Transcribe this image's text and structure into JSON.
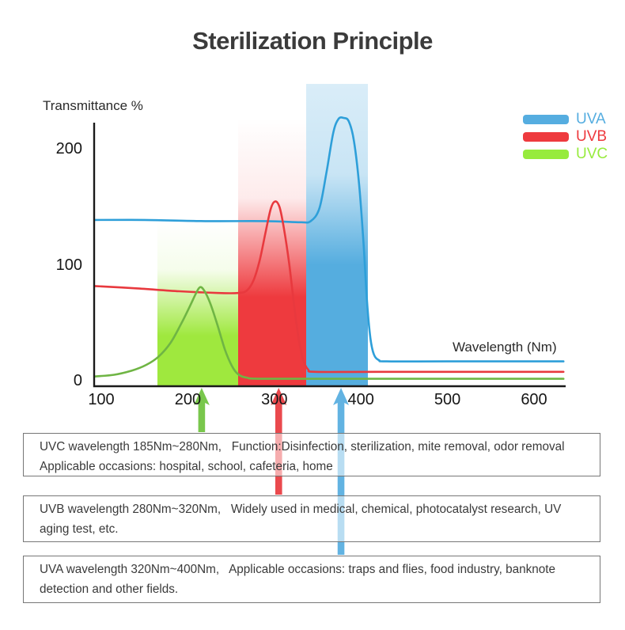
{
  "title": "Sterilization Principle",
  "chart_data": {
    "type": "line",
    "title": "Sterilization Principle",
    "xlabel": "Wavelength (Nm)",
    "ylabel": "Transmittance %",
    "x_ticks": [
      100,
      200,
      300,
      400,
      500,
      600
    ],
    "y_ticks": [
      0,
      100,
      200
    ],
    "xlim": [
      90,
      640
    ],
    "ylim": [
      0,
      235
    ],
    "grid": false,
    "legend_position": "top-right",
    "series": [
      {
        "name": "UVA",
        "color": "#2E9FD9",
        "points": [
          [
            92,
            140
          ],
          [
            150,
            140
          ],
          [
            220,
            139
          ],
          [
            290,
            139
          ],
          [
            330,
            138
          ],
          [
            342,
            139
          ],
          [
            352,
            150
          ],
          [
            360,
            180
          ],
          [
            368,
            215
          ],
          [
            374,
            227
          ],
          [
            380,
            228
          ],
          [
            386,
            225
          ],
          [
            392,
            208
          ],
          [
            398,
            170
          ],
          [
            403,
            120
          ],
          [
            407,
            70
          ],
          [
            411,
            38
          ],
          [
            415,
            24
          ],
          [
            421,
            19
          ],
          [
            430,
            18
          ],
          [
            500,
            18
          ],
          [
            634,
            18
          ]
        ]
      },
      {
        "name": "UVB",
        "color": "#E8393E",
        "points": [
          [
            92,
            83
          ],
          [
            140,
            81
          ],
          [
            190,
            78.5
          ],
          [
            235,
            77
          ],
          [
            258,
            77
          ],
          [
            268,
            79
          ],
          [
            276,
            88
          ],
          [
            283,
            105
          ],
          [
            290,
            130
          ],
          [
            296,
            150
          ],
          [
            301,
            156
          ],
          [
            306,
            151
          ],
          [
            311,
            133
          ],
          [
            317,
            103
          ],
          [
            323,
            65
          ],
          [
            328,
            38
          ],
          [
            333,
            20
          ],
          [
            339,
            11
          ],
          [
            348,
            9
          ],
          [
            420,
            9
          ],
          [
            634,
            9
          ]
        ]
      },
      {
        "name": "UVC",
        "color": "#6FB544",
        "points": [
          [
            92,
            5
          ],
          [
            115,
            6.5
          ],
          [
            135,
            10
          ],
          [
            152,
            15
          ],
          [
            166,
            22
          ],
          [
            180,
            34
          ],
          [
            192,
            50
          ],
          [
            202,
            65
          ],
          [
            209,
            76
          ],
          [
            214,
            82
          ],
          [
            219,
            79
          ],
          [
            226,
            68
          ],
          [
            234,
            50
          ],
          [
            243,
            28
          ],
          [
            251,
            14
          ],
          [
            258,
            7
          ],
          [
            268,
            4
          ],
          [
            290,
            3
          ],
          [
            420,
            3
          ],
          [
            634,
            3
          ]
        ]
      }
    ],
    "bands": [
      {
        "label": "UVC",
        "nm_range": [
          165,
          258
        ],
        "top_value": 139,
        "color": "#9FE83E",
        "fade_from_opacity": 0,
        "solid_at_percent": 70
      },
      {
        "label": "UVB",
        "nm_range": [
          258,
          337
        ],
        "top_value": 228,
        "color": "#EE3A3E",
        "fade_from_opacity": 0,
        "solid_at_percent": 67
      },
      {
        "label": "UVA",
        "nm_range": [
          337,
          408
        ],
        "top_value": 257,
        "color": "#55ADDF",
        "fade_from_opacity": 0.22,
        "solid_at_percent": 60
      }
    ],
    "arrows": [
      {
        "label": "UVC",
        "nm": 216,
        "color": "#6EC23D",
        "points_to_box": 0
      },
      {
        "label": "UVB",
        "nm": 305,
        "color": "#E8393E",
        "points_to_box": 1
      },
      {
        "label": "UVA",
        "nm": 377,
        "color": "#55ADE0",
        "points_to_box": 2
      }
    ]
  },
  "legend": {
    "items": [
      {
        "label": "UVA",
        "color": "#55ADE0"
      },
      {
        "label": "UVB",
        "color": "#EE3A3E"
      },
      {
        "label": "UVC",
        "color": "#97EB3D"
      }
    ]
  },
  "boxes": [
    {
      "id": "uvc",
      "line1": "UVC wavelength 185Nm~280Nm,   Function:Disinfection, sterilization, mite removal, odor removal",
      "line2": "Applicable occasions: hospital, school, cafeteria, home"
    },
    {
      "id": "uvb",
      "line1": "UVB wavelength 280Nm~320Nm,   Widely used in medical, chemical, photocatalyst research, UV",
      "line2": "aging test, etc."
    },
    {
      "id": "uva",
      "line1": "UVA wavelength 320Nm~400Nm,   Applicable occasions: traps and flies, food industry, banknote",
      "line2": "detection and other fields."
    }
  ]
}
